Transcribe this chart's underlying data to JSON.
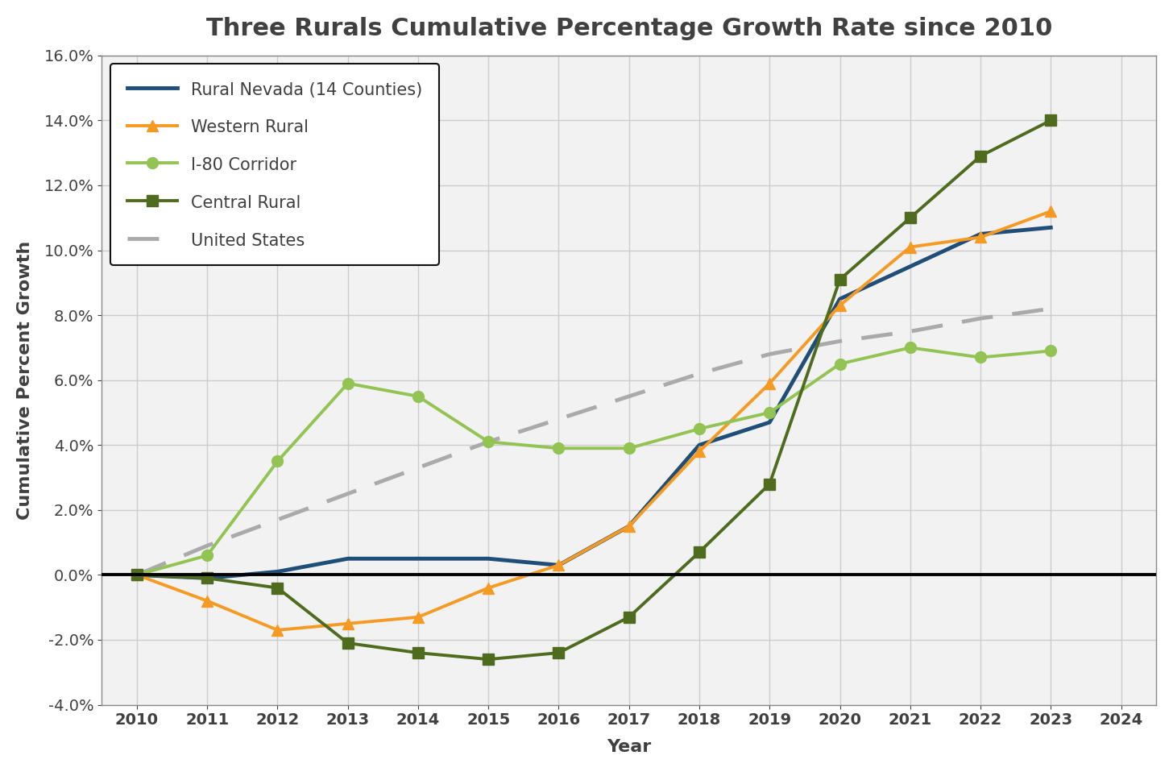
{
  "title": "Three Rurals Cumulative Percentage Growth Rate since 2010",
  "xlabel": "Year",
  "ylabel": "Cumulative Percent Growth",
  "years": [
    2010,
    2011,
    2012,
    2013,
    2014,
    2015,
    2016,
    2017,
    2018,
    2019,
    2020,
    2021,
    2022,
    2023
  ],
  "rural_nevada": [
    0.0,
    -0.001,
    0.001,
    0.005,
    0.005,
    0.005,
    0.003,
    0.015,
    0.04,
    0.047,
    0.085,
    0.095,
    0.105,
    0.107
  ],
  "western_rural": [
    0.0,
    -0.008,
    -0.017,
    -0.015,
    -0.013,
    -0.004,
    0.003,
    0.015,
    0.038,
    0.059,
    0.083,
    0.101,
    0.104,
    0.112
  ],
  "i80_corridor": [
    0.0,
    0.006,
    0.035,
    0.059,
    0.055,
    0.041,
    0.039,
    0.039,
    0.045,
    0.05,
    0.065,
    0.07,
    0.067,
    0.069
  ],
  "central_rural": [
    0.0,
    -0.001,
    -0.004,
    -0.021,
    -0.024,
    -0.026,
    -0.024,
    -0.013,
    0.007,
    0.028,
    0.091,
    0.11,
    0.129,
    0.14
  ],
  "united_states": [
    0.0,
    0.009,
    0.017,
    0.025,
    0.033,
    0.041,
    0.048,
    0.055,
    0.062,
    0.068,
    0.072,
    0.075,
    0.079,
    0.082
  ],
  "rural_nevada_color": "#1F4E79",
  "western_rural_color": "#F59A23",
  "i80_corridor_color": "#92C353",
  "central_rural_color": "#4E6B1E",
  "united_states_color": "#AAAAAA",
  "text_color": "#404040",
  "ylim": [
    -0.04,
    0.16
  ],
  "yticks": [
    -0.04,
    -0.02,
    0.0,
    0.02,
    0.04,
    0.06,
    0.08,
    0.1,
    0.12,
    0.14,
    0.16
  ],
  "background_color": "#FFFFFF",
  "plot_bg_color": "#F2F2F2",
  "grid_color": "#CCCCCC",
  "title_fontsize": 22,
  "label_fontsize": 16,
  "tick_fontsize": 14,
  "legend_fontsize": 15,
  "linewidth": 2.8,
  "markersize": 10
}
